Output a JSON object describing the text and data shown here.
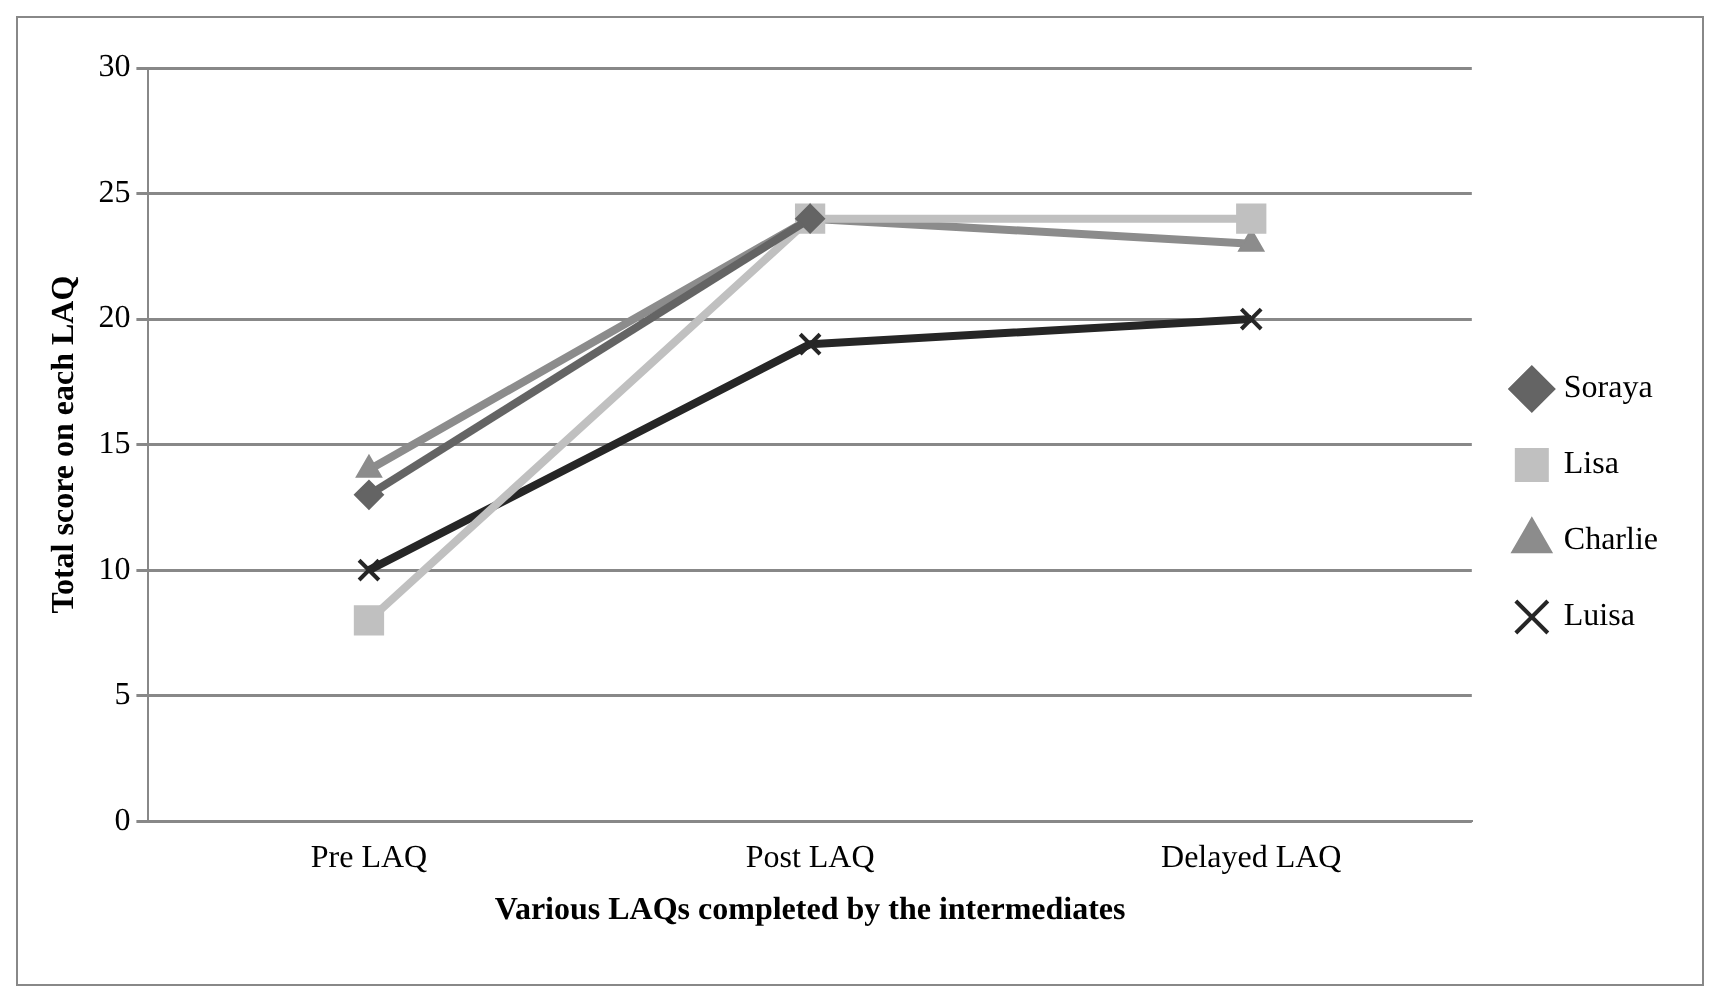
{
  "chart_data": {
    "type": "line",
    "xlabel": "Various LAQs completed by the intermediates",
    "ylabel": "Total score on each LAQ",
    "categories": [
      "Pre LAQ",
      "Post LAQ",
      "Delayed LAQ"
    ],
    "series": [
      {
        "name": "Soraya",
        "color": "#646464",
        "marker": "diamond",
        "values": [
          13,
          24,
          null
        ]
      },
      {
        "name": "Lisa",
        "color": "#c0c0c0",
        "marker": "square",
        "values": [
          8,
          24,
          24
        ]
      },
      {
        "name": "Charlie",
        "color": "#8c8c8c",
        "marker": "triangle",
        "values": [
          14,
          24,
          23
        ]
      },
      {
        "name": "Luisa",
        "color": "#262626",
        "marker": "cross",
        "values": [
          10,
          19,
          20
        ]
      }
    ],
    "ylim": [
      0,
      30
    ],
    "yticks": [
      0,
      5,
      10,
      15,
      20,
      25,
      30
    ],
    "grid": "y",
    "legend": "right"
  }
}
